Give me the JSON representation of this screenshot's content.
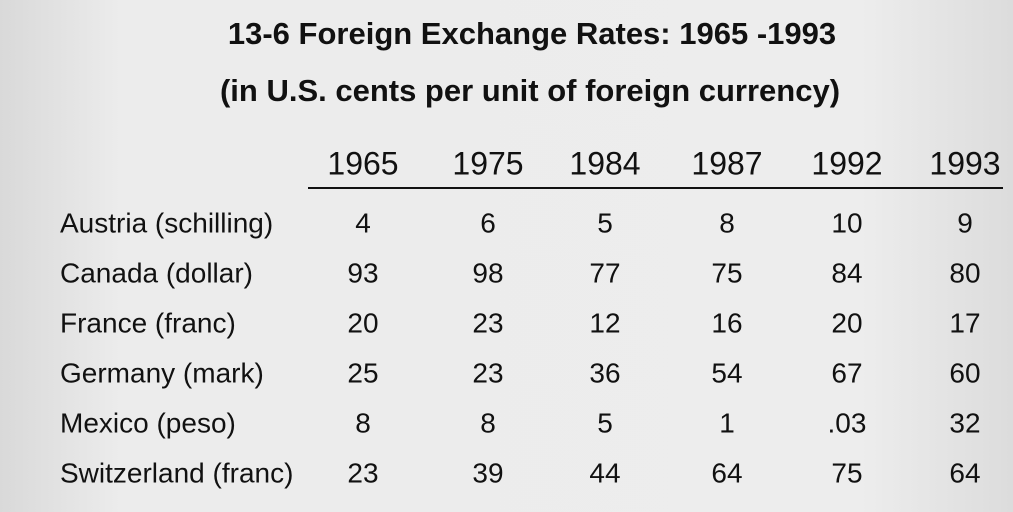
{
  "title": "13-6 Foreign Exchange Rates: 1965 -1993",
  "subtitle": "(in U.S. cents per unit of foreign currency)",
  "table": {
    "columns": [
      "1965",
      "1975",
      "1984",
      "1987",
      "1992",
      "1993"
    ],
    "rows": [
      {
        "label": "Austria (schilling)",
        "cells": [
          "4",
          "6",
          "5",
          "8",
          "10",
          "9"
        ]
      },
      {
        "label": "Canada (dollar)",
        "cells": [
          "93",
          "98",
          "77",
          "75",
          "84",
          "80"
        ]
      },
      {
        "label": "France (franc)",
        "cells": [
          "20",
          "23",
          "12",
          "16",
          "20",
          "17"
        ]
      },
      {
        "label": "Germany (mark)",
        "cells": [
          "25",
          "23",
          "36",
          "54",
          "67",
          "60"
        ]
      },
      {
        "label": "Mexico (peso)",
        "cells": [
          "8",
          "8",
          "5",
          "1",
          ".03",
          "32"
        ]
      },
      {
        "label": "Switzerland (franc)",
        "cells": [
          "23",
          "39",
          "44",
          "64",
          "75",
          "64"
        ]
      }
    ]
  }
}
